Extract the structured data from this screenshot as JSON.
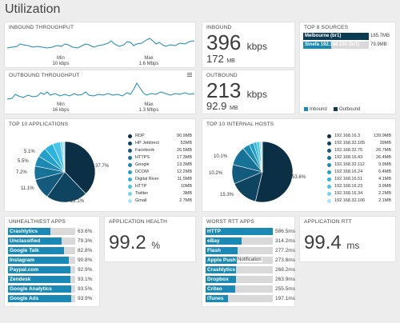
{
  "page": {
    "title": "Utilization"
  },
  "inbound_throughput": {
    "title": "INBOUND THROUGHPUT",
    "min_label": "Min",
    "min_value": "10 kbps",
    "max_label": "Max",
    "max_value": "1.6 Mbps"
  },
  "outbound_throughput": {
    "title": "OUTBOUND THROUGHPUT",
    "min_label": "Min",
    "min_value": "16 kbps",
    "max_label": "Max",
    "max_value": "1.3 Mbps"
  },
  "inbound": {
    "title": "INBOUND",
    "rate_value": "396",
    "rate_unit": "kbps",
    "total_value": "172",
    "total_unit": "MB"
  },
  "outbound": {
    "title": "OUTBOUND",
    "rate_value": "213",
    "rate_unit": "kbps",
    "total_value": "92.9",
    "total_unit": "MB"
  },
  "top_sources": {
    "title": "TOP 8 SOURCES",
    "items": [
      {
        "label": "Melbourne (br1)",
        "value": "185.7MB",
        "fill": 1.0,
        "style": "dark"
      },
      {
        "label": "Sinefa 192.168.100 (br1)",
        "value": "79.9MB",
        "fill": 0.43,
        "style": "blue"
      }
    ],
    "legend": [
      {
        "label": "Inbound",
        "color": "#1a89b5"
      },
      {
        "label": "Outbound",
        "color": "#0b3a53"
      }
    ]
  },
  "top_applications": {
    "title": "TOP 10 APPLICATIONS",
    "pct_labels": [
      "37.7%",
      "22.1%",
      "11.1%",
      "7.2%",
      "5.5%",
      "5.1%"
    ],
    "legend": [
      {
        "name": "RDP",
        "value": "90.9MB",
        "color": "#0b2f44"
      },
      {
        "name": "HP Jetdirect",
        "value": "53MB",
        "color": "#0e4460"
      },
      {
        "name": "Facebook",
        "value": "26.5MB",
        "color": "#135a7d"
      },
      {
        "name": "HTTPS",
        "value": "17.3MB",
        "color": "#177297"
      },
      {
        "name": "Google",
        "value": "13.3MB",
        "color": "#1b89b3"
      },
      {
        "name": "DCOM",
        "value": "12.2MB",
        "color": "#22a0cb"
      },
      {
        "name": "Digital River",
        "value": "11.5MB",
        "color": "#2bb4e0"
      },
      {
        "name": "HTTP",
        "value": "10MB",
        "color": "#49c3ec"
      },
      {
        "name": "Twitter",
        "value": "3MB",
        "color": "#74d3f3"
      },
      {
        "name": "Gmail",
        "value": "2.7MB",
        "color": "#a7e4f8"
      }
    ]
  },
  "top_hosts": {
    "title": "TOP 10 INTERNAL HOSTS",
    "pct_labels": [
      "53.6%",
      "15.3%",
      "10.2%",
      "10.1%"
    ],
    "legend": [
      {
        "name": "192.168.16.3",
        "value": "139.9MB",
        "color": "#0b2f44"
      },
      {
        "name": "192.168.32.105",
        "value": "39MB",
        "color": "#0e4460"
      },
      {
        "name": "192.168.32.75",
        "value": "26.7MB",
        "color": "#135a7d"
      },
      {
        "name": "192.168.16.43",
        "value": "26.4MB",
        "color": "#177297"
      },
      {
        "name": "192.168.32.112",
        "value": "9.9MB",
        "color": "#1b89b3"
      },
      {
        "name": "192.168.16.24",
        "value": "6.4MB",
        "color": "#22a0cb"
      },
      {
        "name": "192.168.16.51",
        "value": "4.1MB",
        "color": "#2bb4e0"
      },
      {
        "name": "192.168.16.23",
        "value": "3.9MB",
        "color": "#49c3ec"
      },
      {
        "name": "192.168.16.34",
        "value": "2.2MB",
        "color": "#74d3f3"
      },
      {
        "name": "192.168.32.106",
        "value": "2.1MB",
        "color": "#a7e4f8"
      }
    ]
  },
  "unhealthiest_apps": {
    "title": "UNHEALTHIEST APPS",
    "items": [
      {
        "label": "Crashlytics",
        "value": "63.6%",
        "fill": 0.636
      },
      {
        "label": "Unclassified",
        "value": "79.3%",
        "fill": 0.793
      },
      {
        "label": "Google Talk",
        "value": "82.8%",
        "fill": 0.828
      },
      {
        "label": "Instagram",
        "value": "90.8%",
        "fill": 0.908
      },
      {
        "label": "Paypal.com",
        "value": "92.9%",
        "fill": 0.929
      },
      {
        "label": "Zendesk",
        "value": "93.1%",
        "fill": 0.931
      },
      {
        "label": "Google Analytics",
        "value": "93.5%",
        "fill": 0.935
      },
      {
        "label": "Google Ads",
        "value": "93.9%",
        "fill": 0.939
      }
    ]
  },
  "application_health": {
    "title": "APPLICATION HEALTH",
    "value": "99.2",
    "unit": "%"
  },
  "worst_rtt_apps": {
    "title": "WORST RTT APPS",
    "tooltip": "Notification",
    "items": [
      {
        "label": "HTTP",
        "value": "586.5ms",
        "fill": 1.0
      },
      {
        "label": "eBay",
        "value": "314.2ms",
        "fill": 0.536
      },
      {
        "label": "Flash",
        "value": "277.2ms",
        "fill": 0.473
      },
      {
        "label": "Apple Push",
        "value": "273.8ms",
        "fill": 0.467
      },
      {
        "label": "Crashlytics",
        "value": "268.2ms",
        "fill": 0.457
      },
      {
        "label": "Dropbox",
        "value": "263.9ms",
        "fill": 0.45
      },
      {
        "label": "Criteo",
        "value": "255.5ms",
        "fill": 0.436
      },
      {
        "label": "iTunes",
        "value": "197.1ms",
        "fill": 0.336
      }
    ]
  },
  "application_rtt": {
    "title": "APPLICATION RTT",
    "value": "99.4",
    "unit": "ms"
  }
}
